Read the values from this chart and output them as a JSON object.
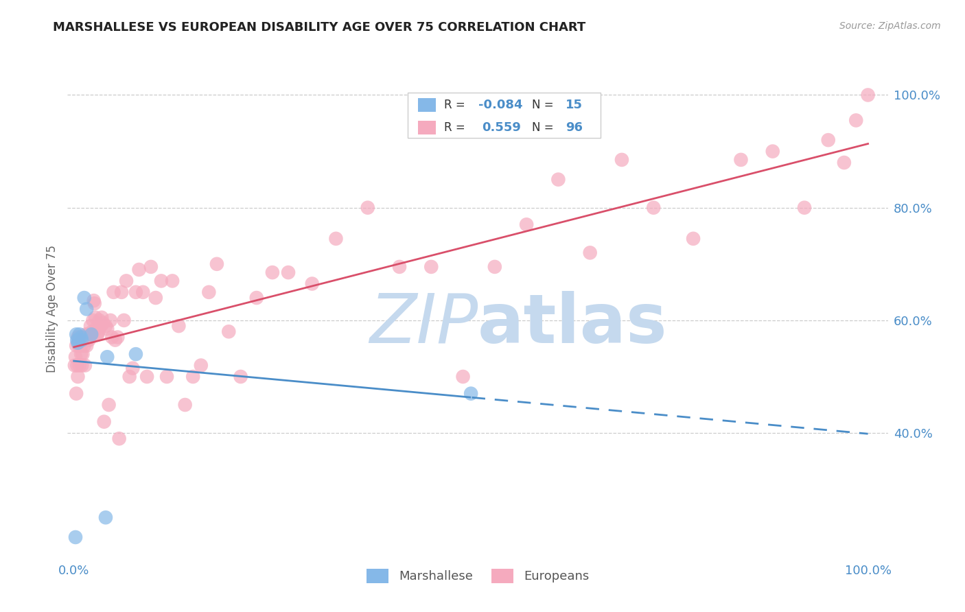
{
  "title": "MARSHALLESE VS EUROPEAN DISABILITY AGE OVER 75 CORRELATION CHART",
  "source": "Source: ZipAtlas.com",
  "ylabel": "Disability Age Over 75",
  "legend_marshallese": "Marshallese",
  "legend_europeans": "Europeans",
  "R_marshallese": -0.084,
  "N_marshallese": 15,
  "R_europeans": 0.559,
  "N_europeans": 96,
  "color_marshallese": "#85b8e8",
  "color_europeans": "#f5aabe",
  "color_line_marshallese": "#4a8dc8",
  "color_line_europeans": "#d94f6a",
  "watermark_color": "#c5d9ee",
  "background": "#ffffff",
  "tick_color": "#4a8dc8",
  "grid_color": "#cccccc",
  "marshallese_x": [
    0.002,
    0.003,
    0.004,
    0.005,
    0.006,
    0.007,
    0.009,
    0.01,
    0.013,
    0.016,
    0.022,
    0.04,
    0.042,
    0.5,
    0.078
  ],
  "marshallese_y": [
    0.215,
    0.575,
    0.565,
    0.56,
    0.565,
    0.575,
    0.57,
    0.565,
    0.64,
    0.62,
    0.575,
    0.25,
    0.535,
    0.47,
    0.54
  ],
  "europeans_x": [
    0.001,
    0.002,
    0.003,
    0.003,
    0.004,
    0.005,
    0.005,
    0.006,
    0.007,
    0.008,
    0.008,
    0.009,
    0.009,
    0.01,
    0.01,
    0.011,
    0.012,
    0.013,
    0.014,
    0.015,
    0.015,
    0.016,
    0.017,
    0.018,
    0.019,
    0.02,
    0.021,
    0.022,
    0.023,
    0.024,
    0.025,
    0.026,
    0.027,
    0.028,
    0.029,
    0.03,
    0.031,
    0.032,
    0.034,
    0.035,
    0.037,
    0.038,
    0.04,
    0.042,
    0.044,
    0.046,
    0.048,
    0.05,
    0.052,
    0.055,
    0.057,
    0.06,
    0.063,
    0.066,
    0.07,
    0.074,
    0.078,
    0.082,
    0.087,
    0.092,
    0.097,
    0.103,
    0.11,
    0.117,
    0.124,
    0.132,
    0.14,
    0.15,
    0.16,
    0.17,
    0.18,
    0.195,
    0.21,
    0.23,
    0.25,
    0.27,
    0.3,
    0.33,
    0.37,
    0.41,
    0.45,
    0.49,
    0.53,
    0.57,
    0.61,
    0.65,
    0.69,
    0.73,
    0.78,
    0.84,
    0.88,
    0.92,
    0.95,
    0.97,
    0.985,
    1.0
  ],
  "europeans_y": [
    0.52,
    0.535,
    0.47,
    0.555,
    0.52,
    0.5,
    0.57,
    0.555,
    0.52,
    0.555,
    0.56,
    0.54,
    0.555,
    0.52,
    0.565,
    0.54,
    0.565,
    0.555,
    0.52,
    0.565,
    0.575,
    0.555,
    0.565,
    0.575,
    0.565,
    0.575,
    0.59,
    0.575,
    0.58,
    0.6,
    0.635,
    0.63,
    0.605,
    0.585,
    0.575,
    0.575,
    0.58,
    0.6,
    0.59,
    0.605,
    0.595,
    0.42,
    0.59,
    0.585,
    0.45,
    0.6,
    0.57,
    0.65,
    0.565,
    0.57,
    0.39,
    0.65,
    0.6,
    0.67,
    0.5,
    0.515,
    0.65,
    0.69,
    0.65,
    0.5,
    0.695,
    0.64,
    0.67,
    0.5,
    0.67,
    0.59,
    0.45,
    0.5,
    0.52,
    0.65,
    0.7,
    0.58,
    0.5,
    0.64,
    0.685,
    0.685,
    0.665,
    0.745,
    0.8,
    0.695,
    0.695,
    0.5,
    0.695,
    0.77,
    0.85,
    0.72,
    0.885,
    0.8,
    0.745,
    0.885,
    0.9,
    0.8,
    0.92,
    0.88,
    0.955,
    1.0
  ],
  "xlim": [
    -0.008,
    1.025
  ],
  "ylim": [
    0.18,
    1.06
  ],
  "yticks": [
    0.4,
    0.6,
    0.8,
    1.0
  ],
  "ytick_labels": [
    "40.0%",
    "60.0%",
    "80.0%",
    "100.0%"
  ],
  "xticks": [
    0.0,
    1.0
  ],
  "xtick_labels": [
    "0.0%",
    "100.0%"
  ]
}
